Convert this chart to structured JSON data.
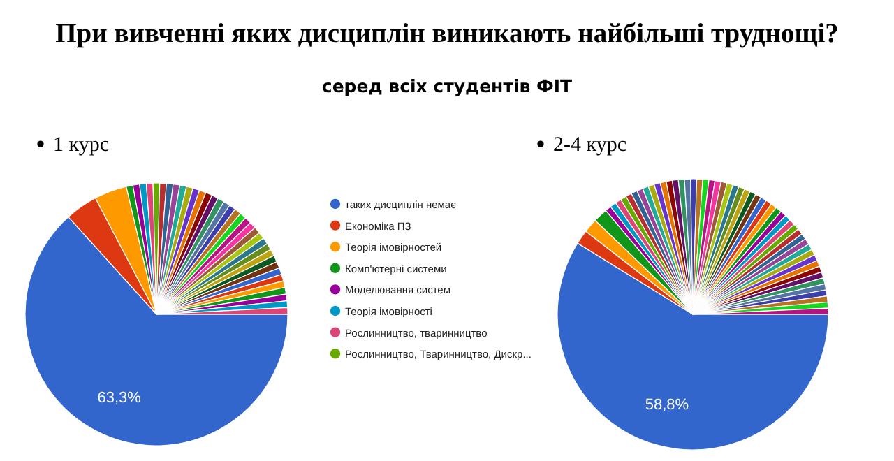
{
  "chart_data": [
    {
      "type": "pie",
      "title": "При вивченні яких дисциплін виникають найбільші труднощі?",
      "subtitle": "серед всіх студентів ФІТ",
      "annotations": [
        "1 курс"
      ],
      "categories": [
        "таких дисциплін немає",
        "Економіка ПЗ",
        "Теорія імовірностей",
        "Комп'ютерні системи",
        "Моделювання систем",
        "Теорія імовірності",
        "Рослинництво, тваринництво",
        "Рослинництво, Тваринництво, Дискр...",
        null,
        null,
        null,
        null,
        null,
        null,
        null,
        null,
        null,
        null,
        null,
        null,
        null,
        null,
        null,
        null,
        null,
        null,
        null,
        null,
        null,
        null,
        null,
        null,
        null,
        null,
        null,
        null,
        null,
        null
      ],
      "values": [
        63.3,
        4.0,
        4.0,
        0.82,
        0.82,
        0.82,
        0.82,
        0.82,
        0.82,
        0.82,
        0.82,
        0.82,
        0.82,
        0.82,
        0.82,
        0.82,
        0.82,
        0.82,
        0.82,
        0.82,
        0.82,
        0.82,
        0.82,
        0.82,
        0.82,
        0.82,
        0.82,
        0.82,
        0.82,
        0.82,
        0.82,
        0.82,
        0.82,
        0.82,
        0.82,
        0.82,
        0.82,
        0.82
      ],
      "colors": [
        "#3366cc",
        "#dc3912",
        "#ff9900",
        "#109618",
        "#990099",
        "#0099c6",
        "#dd4477",
        "#66aa00",
        "#b82e2e",
        "#316395",
        "#994499",
        "#22aa99",
        "#aaaa11",
        "#6633cc",
        "#e67300",
        "#8b0707",
        "#651067",
        "#329262",
        "#5574a6",
        "#3b3eac",
        "#b77322",
        "#16d620",
        "#b91383",
        "#f4359e",
        "#9c5935",
        "#a9c413",
        "#2a778d",
        "#668d1c",
        "#bea413",
        "#0c5922",
        "#743411",
        "#3366cc",
        "#dc3912",
        "#ff9900",
        "#109618",
        "#990099",
        "#0099c6",
        "#dd4477"
      ],
      "value_labels": [
        "63,3%",
        null,
        null,
        null,
        null,
        null,
        null,
        null,
        null,
        null,
        null,
        null,
        null,
        null,
        null,
        null,
        null,
        null,
        null,
        null,
        null,
        null,
        null,
        null,
        null,
        null,
        null,
        null,
        null,
        null,
        null,
        null,
        null,
        null,
        null,
        null,
        null,
        null
      ],
      "legend": "right"
    },
    {
      "type": "pie",
      "annotations": [
        "2-4 курс"
      ],
      "categories": [
        null,
        null,
        null,
        null,
        null,
        null,
        null,
        null,
        null,
        null,
        null,
        null,
        null,
        null,
        null,
        null,
        null,
        null,
        null,
        null,
        null,
        null,
        null,
        null,
        null,
        null,
        null,
        null,
        null,
        null,
        null,
        null,
        null,
        null,
        null,
        null,
        null,
        null,
        null,
        null,
        null,
        null,
        null,
        null,
        null,
        null,
        null,
        null,
        null,
        null,
        null,
        null,
        null,
        null
      ],
      "values": [
        58.8,
        1.7,
        1.7,
        1.7,
        0.722,
        0.722,
        0.722,
        0.722,
        0.722,
        0.722,
        0.722,
        0.722,
        0.722,
        0.722,
        0.722,
        0.722,
        0.722,
        0.722,
        0.722,
        0.722,
        0.722,
        0.722,
        0.722,
        0.722,
        0.722,
        0.722,
        0.722,
        0.722,
        0.722,
        0.722,
        0.722,
        0.722,
        0.722,
        0.722,
        0.722,
        0.722,
        0.722,
        0.722,
        0.722,
        0.722,
        0.722,
        0.722,
        0.722,
        0.722,
        0.722,
        0.722,
        0.722,
        0.722,
        0.722,
        0.722,
        0.722,
        0.722,
        0.722,
        0.722
      ],
      "colors": [
        "#3366cc",
        "#dc3912",
        "#ff9900",
        "#109618",
        "#990099",
        "#0099c6",
        "#dd4477",
        "#66aa00",
        "#b82e2e",
        "#316395",
        "#994499",
        "#22aa99",
        "#aaaa11",
        "#6633cc",
        "#e67300",
        "#8b0707",
        "#651067",
        "#329262",
        "#5574a6",
        "#3b3eac",
        "#b77322",
        "#16d620",
        "#b91383",
        "#f4359e",
        "#9c5935",
        "#a9c413",
        "#2a778d",
        "#668d1c",
        "#bea413",
        "#0c5922",
        "#743411",
        "#3366cc",
        "#dc3912",
        "#ff9900",
        "#109618",
        "#990099",
        "#0099c6",
        "#dd4477",
        "#66aa00",
        "#b82e2e",
        "#316395",
        "#994499",
        "#22aa99",
        "#aaaa11",
        "#6633cc",
        "#e67300",
        "#8b0707",
        "#651067",
        "#329262",
        "#5574a6",
        "#3b3eac",
        "#b77322",
        "#16d620",
        "#b91383"
      ],
      "value_labels": [
        "58,8%",
        null,
        null,
        null,
        null,
        null,
        null,
        null,
        null,
        null,
        null,
        null,
        null,
        null,
        null,
        null,
        null,
        null,
        null,
        null,
        null,
        null,
        null,
        null,
        null,
        null,
        null,
        null,
        null,
        null,
        null,
        null,
        null,
        null,
        null,
        null,
        null,
        null,
        null,
        null,
        null,
        null,
        null,
        null,
        null,
        null,
        null,
        null,
        null,
        null,
        null,
        null,
        null,
        null
      ]
    }
  ]
}
